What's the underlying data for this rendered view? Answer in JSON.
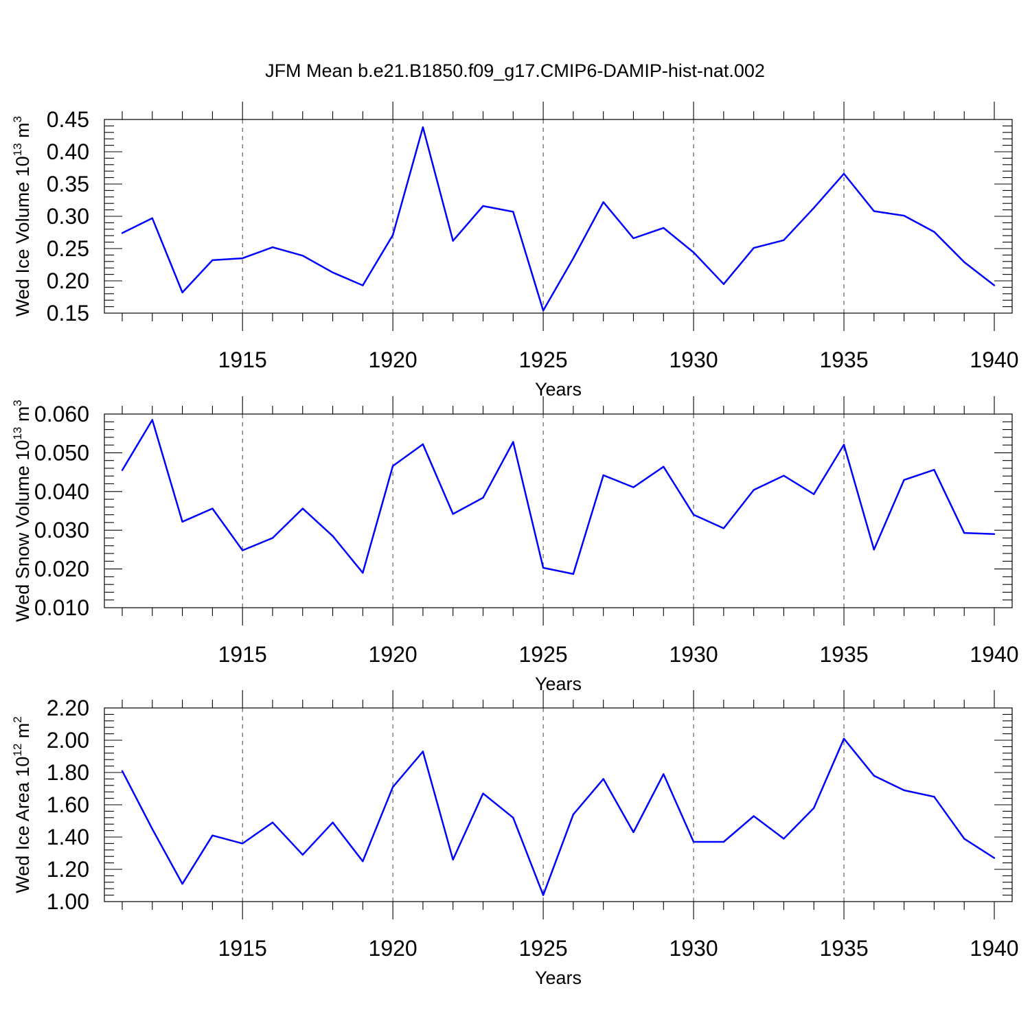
{
  "title": "JFM Mean b.e21.B1850.f09_g17.CMIP6-DAMIP-hist-nat.002",
  "line_color": "#0000ff",
  "chart_data": [
    {
      "type": "line",
      "title": "",
      "xlabel": "Years",
      "ylabel_main": "Wed Ice Volume 10",
      "ylabel_exp": "13",
      "ylabel_unit": " m",
      "ylabel_unit_exp": "3",
      "xlim": [
        1911,
        1940
      ],
      "ylim": [
        0.15,
        0.45
      ],
      "xticks": [
        1915,
        1920,
        1925,
        1930,
        1935,
        1940
      ],
      "xtick_labels": [
        "1915",
        "1920",
        "1925",
        "1930",
        "1935",
        "1940"
      ],
      "yticks": [
        0.15,
        0.2,
        0.25,
        0.3,
        0.35,
        0.4,
        0.45
      ],
      "ytick_labels": [
        "0.15",
        "0.20",
        "0.25",
        "0.30",
        "0.35",
        "0.40",
        "0.45"
      ],
      "grid": "vertical dashed at major x ticks",
      "x": [
        1911,
        1912,
        1913,
        1914,
        1915,
        1916,
        1917,
        1918,
        1919,
        1920,
        1921,
        1922,
        1923,
        1924,
        1925,
        1926,
        1927,
        1928,
        1929,
        1930,
        1931,
        1932,
        1933,
        1934,
        1935,
        1936,
        1937,
        1938,
        1939,
        1940
      ],
      "series": [
        {
          "name": "Wed Ice Volume",
          "values": [
            0.274,
            0.297,
            0.182,
            0.232,
            0.235,
            0.252,
            0.239,
            0.213,
            0.193,
            0.271,
            0.438,
            0.262,
            0.316,
            0.307,
            0.154,
            0.235,
            0.322,
            0.266,
            0.282,
            0.244,
            0.195,
            0.251,
            0.263,
            0.313,
            0.366,
            0.308,
            0.301,
            0.276,
            0.229,
            0.193
          ]
        }
      ]
    },
    {
      "type": "line",
      "title": "",
      "xlabel": "Years",
      "ylabel_main": "Wed Snow Volume 10",
      "ylabel_exp": "13",
      "ylabel_unit": " m",
      "ylabel_unit_exp": "3",
      "xlim": [
        1911,
        1940
      ],
      "ylim": [
        0.01,
        0.06
      ],
      "xticks": [
        1915,
        1920,
        1925,
        1930,
        1935,
        1940
      ],
      "xtick_labels": [
        "1915",
        "1920",
        "1925",
        "1930",
        "1935",
        "1940"
      ],
      "yticks": [
        0.01,
        0.02,
        0.03,
        0.04,
        0.05,
        0.06
      ],
      "ytick_labels": [
        "0.010",
        "0.020",
        "0.030",
        "0.040",
        "0.050",
        "0.060"
      ],
      "grid": "vertical dashed at major x ticks",
      "x": [
        1911,
        1912,
        1913,
        1914,
        1915,
        1916,
        1917,
        1918,
        1919,
        1920,
        1921,
        1922,
        1923,
        1924,
        1925,
        1926,
        1927,
        1928,
        1929,
        1930,
        1931,
        1932,
        1933,
        1934,
        1935,
        1936,
        1937,
        1938,
        1939,
        1940
      ],
      "series": [
        {
          "name": "Wed Snow Volume",
          "values": [
            0.0455,
            0.0585,
            0.0322,
            0.0356,
            0.0248,
            0.028,
            0.0356,
            0.0285,
            0.019,
            0.0466,
            0.0522,
            0.0342,
            0.0384,
            0.0528,
            0.0203,
            0.0187,
            0.0442,
            0.0411,
            0.0464,
            0.034,
            0.0305,
            0.0404,
            0.0441,
            0.0393,
            0.0521,
            0.025,
            0.043,
            0.0456,
            0.0293,
            0.029
          ]
        }
      ]
    },
    {
      "type": "line",
      "title": "",
      "xlabel": "Years",
      "ylabel_main": "Wed Ice Area 10",
      "ylabel_exp": "12",
      "ylabel_unit": " m",
      "ylabel_unit_exp": "2",
      "xlim": [
        1911,
        1940
      ],
      "ylim": [
        1.0,
        2.2
      ],
      "xticks": [
        1915,
        1920,
        1925,
        1930,
        1935,
        1940
      ],
      "xtick_labels": [
        "1915",
        "1920",
        "1925",
        "1930",
        "1935",
        "1940"
      ],
      "yticks": [
        1.0,
        1.2,
        1.4,
        1.6,
        1.8,
        2.0,
        2.2
      ],
      "ytick_labels": [
        "1.00",
        "1.20",
        "1.40",
        "1.60",
        "1.80",
        "2.00",
        "2.20"
      ],
      "grid": "vertical dashed at major x ticks",
      "x": [
        1911,
        1912,
        1913,
        1914,
        1915,
        1916,
        1917,
        1918,
        1919,
        1920,
        1921,
        1922,
        1923,
        1924,
        1925,
        1926,
        1927,
        1928,
        1929,
        1930,
        1931,
        1932,
        1933,
        1934,
        1935,
        1936,
        1937,
        1938,
        1939,
        1940
      ],
      "series": [
        {
          "name": "Wed Ice Area",
          "values": [
            1.81,
            1.45,
            1.11,
            1.41,
            1.36,
            1.49,
            1.29,
            1.49,
            1.25,
            1.71,
            1.93,
            1.26,
            1.67,
            1.52,
            1.04,
            1.54,
            1.76,
            1.43,
            1.79,
            1.37,
            1.37,
            1.53,
            1.39,
            1.58,
            2.01,
            1.78,
            1.69,
            1.65,
            1.39,
            1.27
          ]
        }
      ]
    }
  ]
}
